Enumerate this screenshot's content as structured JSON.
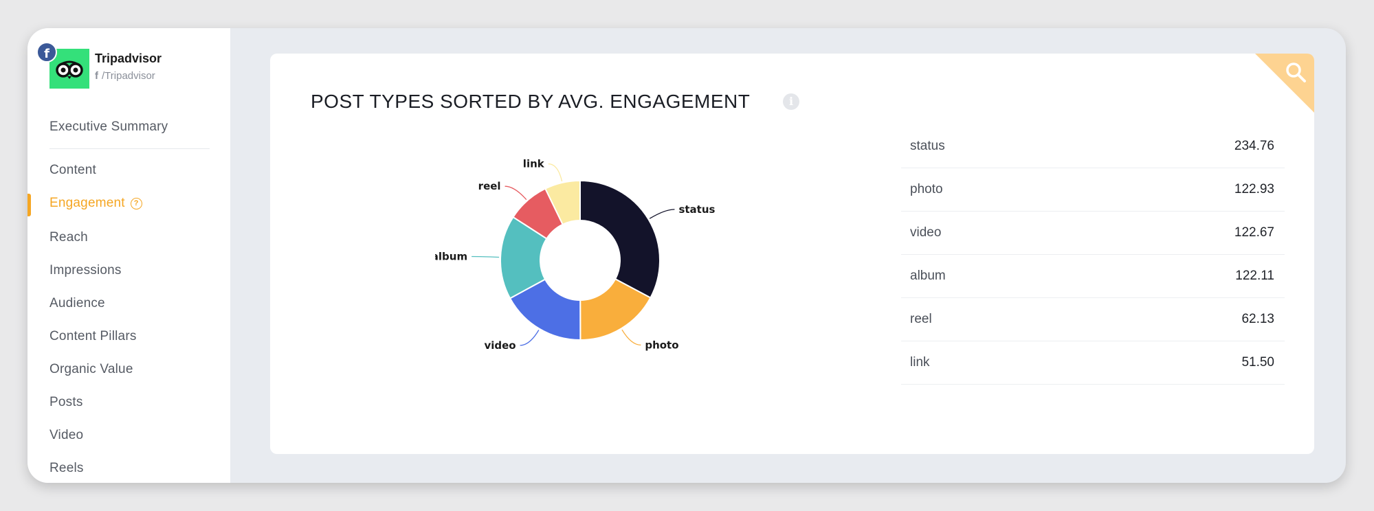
{
  "brand": {
    "name": "Tripadvisor",
    "handle": "/Tripadvisor",
    "network_badge": "f",
    "network_icon": "facebook-icon",
    "logo_color": "#34e07a"
  },
  "nav": {
    "items": [
      {
        "label": "Executive Summary",
        "active": false
      },
      {
        "label": "Content",
        "active": false
      },
      {
        "label": "Engagement",
        "active": true
      },
      {
        "label": "Reach",
        "active": false
      },
      {
        "label": "Impressions",
        "active": false
      },
      {
        "label": "Audience",
        "active": false
      },
      {
        "label": "Content Pillars",
        "active": false
      },
      {
        "label": "Organic Value",
        "active": false
      },
      {
        "label": "Posts",
        "active": false
      },
      {
        "label": "Video",
        "active": false
      },
      {
        "label": "Reels",
        "active": false
      }
    ],
    "help_glyph": "?",
    "accent": "#f5a623"
  },
  "card": {
    "title": "POST TYPES SORTED BY AVG. ENGAGEMENT",
    "info_glyph": "i",
    "corner_color": "#fdd391"
  },
  "chart_data": {
    "type": "pie",
    "donut": true,
    "categories": [
      "status",
      "photo",
      "video",
      "album",
      "reel",
      "link"
    ],
    "values": [
      234.76,
      122.93,
      122.67,
      122.11,
      62.13,
      51.5
    ],
    "colors": [
      "#13132a",
      "#f9ae3c",
      "#4d6fe5",
      "#54bfbf",
      "#e65c61",
      "#fbeaa1"
    ],
    "start_angle_deg": 0,
    "direction": "clockwise"
  },
  "table": {
    "rows": [
      {
        "label": "status",
        "value": "234.76"
      },
      {
        "label": "photo",
        "value": "122.93"
      },
      {
        "label": "video",
        "value": "122.67"
      },
      {
        "label": "album",
        "value": "122.11"
      },
      {
        "label": "reel",
        "value": "62.13"
      },
      {
        "label": "link",
        "value": "51.50"
      }
    ]
  }
}
